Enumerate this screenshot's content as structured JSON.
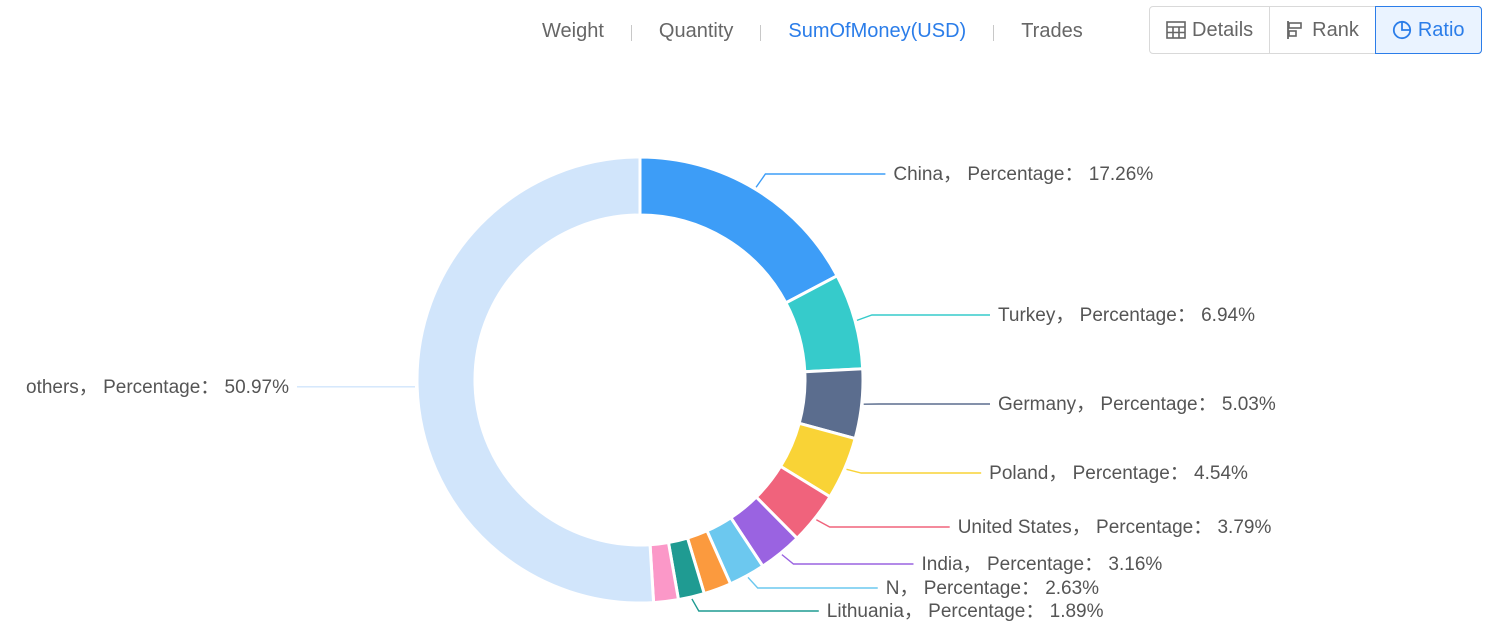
{
  "tabs": {
    "metrics": [
      {
        "label": "Weight",
        "active": false
      },
      {
        "label": "Quantity",
        "active": false
      },
      {
        "label": "SumOfMoney(USD)",
        "active": true
      },
      {
        "label": "Trades",
        "active": false
      }
    ],
    "views": [
      {
        "label": "Details",
        "icon": "table-icon",
        "active": false
      },
      {
        "label": "Rank",
        "icon": "bar-rank-icon",
        "active": false
      },
      {
        "label": "Ratio",
        "icon": "pie-icon",
        "active": true
      }
    ]
  },
  "chart_data": {
    "type": "pie",
    "subtype": "donut",
    "label_key": "Percentage",
    "slices": [
      {
        "name": "China",
        "value": 17.26,
        "color": "#3d9df7"
      },
      {
        "name": "Turkey",
        "value": 6.94,
        "color": "#36cbcb"
      },
      {
        "name": "Germany",
        "value": 5.03,
        "color": "#5b6d8e"
      },
      {
        "name": "Poland",
        "value": 4.54,
        "color": "#f9d336"
      },
      {
        "name": "United States",
        "value": 3.79,
        "color": "#f0637c"
      },
      {
        "name": "India",
        "value": 3.16,
        "color": "#9a63e1"
      },
      {
        "name": "N",
        "value": 2.63,
        "color": "#6cc8ef"
      },
      {
        "name": "",
        "value": 2.0,
        "color": "#fb9a3e",
        "unlabeled": true
      },
      {
        "name": "Lithuania",
        "value": 1.89,
        "color": "#1f9b92"
      },
      {
        "name": "",
        "value": 1.79,
        "color": "#fb98c8",
        "unlabeled": true
      },
      {
        "name": "others",
        "value": 50.97,
        "color": "#d1e5fb"
      }
    ],
    "legend": "none"
  }
}
